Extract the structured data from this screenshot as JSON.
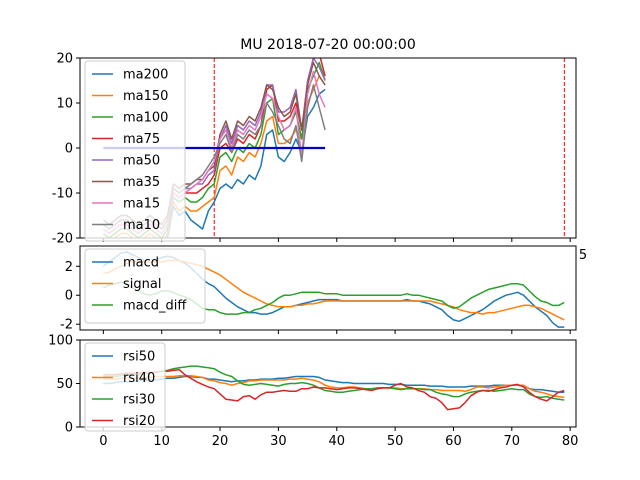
{
  "title": "MU 2018-07-20 00:00:00",
  "colors": {
    "blue": "#1f77b4",
    "orange": "#ff7f0e",
    "green": "#2ca02c",
    "red": "#d62728",
    "purple": "#9467bd",
    "brown": "#8c564b",
    "pink": "#e377c2",
    "gray": "#7f7f7f",
    "hline": "#0000cc",
    "vline": "#ff0000"
  },
  "chart_data": [
    {
      "type": "line",
      "title": "MU 2018-07-20 00:00:00",
      "xlim": [
        -4,
        81
      ],
      "ylim": [
        -20,
        20
      ],
      "y_ticks": [
        "20",
        "10",
        "0",
        "-10",
        "-20"
      ],
      "x_ticks_visible": [
        "5"
      ],
      "legend": "top-left",
      "vlines_x": [
        19,
        79
      ],
      "hline": {
        "y": 0,
        "x_start": 0,
        "x_end": 38
      },
      "x": [
        0,
        1,
        2,
        3,
        4,
        5,
        6,
        7,
        8,
        9,
        10,
        11,
        12,
        13,
        14,
        15,
        16,
        17,
        18,
        19,
        20,
        21,
        22,
        23,
        24,
        25,
        26,
        27,
        28,
        29,
        30,
        31,
        32,
        33,
        34,
        35,
        36,
        37,
        38
      ],
      "series": [
        {
          "name": "ma200",
          "values": [
            -21,
            -22,
            -21,
            -20,
            -20,
            -21,
            -22,
            -21,
            -20,
            -21,
            -22,
            -20,
            -13,
            -15,
            -14,
            -16,
            -17,
            -18,
            -14,
            -12,
            -9,
            -8,
            -9,
            -7,
            -8,
            -6,
            -7,
            -4,
            3,
            4,
            -2,
            -3,
            -1,
            2,
            -1,
            7,
            9,
            12,
            13
          ]
        },
        {
          "name": "ma150",
          "values": [
            -20,
            -21,
            -20,
            -19,
            -19,
            -20,
            -21,
            -20,
            -19,
            -20,
            -21,
            -19,
            -12,
            -14,
            -13,
            -14,
            -14,
            -13,
            -12,
            -11,
            -5,
            -4,
            -6,
            -2,
            -3,
            -1,
            -2,
            1,
            6,
            7,
            1,
            1,
            2,
            4,
            2,
            10,
            13,
            16,
            14
          ]
        },
        {
          "name": "ma100",
          "values": [
            -19,
            -20,
            -19,
            -18,
            -18,
            -19,
            -20,
            -19,
            -18,
            -19,
            -20,
            -18,
            -11,
            -12,
            -11,
            -12,
            -12,
            -11,
            -9,
            -8,
            -2,
            -1,
            -3,
            0,
            -1,
            1,
            0,
            3,
            10,
            11,
            3,
            4,
            5,
            8,
            2,
            13,
            16,
            19,
            15
          ]
        },
        {
          "name": "ma75",
          "values": [
            -18,
            -19,
            -18,
            -17,
            -17,
            -18,
            -19,
            -18,
            -17,
            -18,
            -19,
            -17,
            -10,
            -11,
            -10,
            -10,
            -10,
            -9,
            -8,
            -6,
            0,
            1,
            -1,
            2,
            1,
            3,
            2,
            5,
            13,
            14,
            6,
            6,
            7,
            10,
            4,
            14,
            20,
            21,
            16
          ]
        },
        {
          "name": "ma50",
          "values": [
            -17,
            -18,
            -17,
            -16,
            -16,
            -17,
            -18,
            -17,
            -16,
            -17,
            -18,
            -16,
            -9,
            -10,
            -9,
            -9,
            -8,
            -8,
            -6,
            -5,
            2,
            5,
            1,
            5,
            4,
            6,
            5,
            8,
            14,
            14,
            8,
            8,
            9,
            13,
            4,
            15,
            20,
            18,
            15
          ]
        },
        {
          "name": "ma35",
          "values": [
            -16,
            -17,
            -16,
            -15,
            -15,
            -16,
            -17,
            -16,
            -15,
            -16,
            -17,
            -15,
            -8,
            -9,
            -8,
            -8,
            -7,
            -7,
            -5,
            -4,
            3,
            6,
            2,
            6,
            5,
            7,
            6,
            9,
            14,
            13,
            9,
            7,
            8,
            12,
            4,
            14,
            19,
            16,
            14
          ]
        },
        {
          "name": "ma15",
          "values": [
            -18,
            -19,
            -18,
            -17,
            -17,
            -18,
            -19,
            -18,
            -17,
            -18,
            -19,
            -17,
            -10,
            -11,
            -10,
            -9,
            -8,
            -7,
            -5,
            -3,
            2,
            4,
            0,
            4,
            3,
            5,
            4,
            7,
            12,
            11,
            7,
            4,
            5,
            9,
            -2,
            12,
            17,
            12,
            9
          ]
        },
        {
          "name": "ma10",
          "values": [
            -17,
            -18,
            -17,
            -16,
            -16,
            -17,
            -18,
            -17,
            -16,
            -17,
            -18,
            -16,
            -9,
            -10,
            -9,
            -8,
            -7,
            -6,
            -4,
            -2,
            1,
            3,
            -1,
            3,
            2,
            4,
            3,
            5,
            10,
            8,
            5,
            2,
            1,
            5,
            -3,
            9,
            14,
            9,
            4
          ]
        }
      ]
    },
    {
      "type": "line",
      "xlim": [
        -4,
        81
      ],
      "ylim": [
        -2.4,
        3.4
      ],
      "y_ticks": [
        "2",
        "0",
        "-2"
      ],
      "legend": "top-left",
      "x": [
        0,
        1,
        2,
        3,
        4,
        5,
        6,
        7,
        8,
        9,
        10,
        11,
        12,
        13,
        14,
        15,
        16,
        17,
        18,
        19,
        20,
        21,
        22,
        23,
        24,
        25,
        26,
        27,
        28,
        29,
        30,
        31,
        32,
        33,
        34,
        35,
        36,
        37,
        38,
        39,
        40,
        41,
        42,
        43,
        44,
        45,
        46,
        47,
        48,
        49,
        50,
        51,
        52,
        53,
        54,
        55,
        56,
        57,
        58,
        59,
        60,
        61,
        62,
        63,
        64,
        65,
        66,
        67,
        68,
        69,
        70,
        71,
        72,
        73,
        74,
        75,
        76,
        77,
        78,
        79
      ],
      "series": [
        {
          "name": "macd",
          "values": [
            2.0,
            2.3,
            2.6,
            2.9,
            3.0,
            2.8,
            2.6,
            2.4,
            2.3,
            2.4,
            2.6,
            2.7,
            2.6,
            2.4,
            2.2,
            1.9,
            1.5,
            1.1,
            0.8,
            0.6,
            0.2,
            -0.2,
            -0.5,
            -0.8,
            -1.0,
            -1.2,
            -1.2,
            -1.3,
            -1.3,
            -1.2,
            -1.0,
            -0.8,
            -0.8,
            -0.7,
            -0.6,
            -0.5,
            -0.4,
            -0.3,
            -0.3,
            -0.3,
            -0.3,
            -0.4,
            -0.4,
            -0.4,
            -0.4,
            -0.4,
            -0.4,
            -0.4,
            -0.4,
            -0.4,
            -0.4,
            -0.4,
            -0.3,
            -0.4,
            -0.4,
            -0.5,
            -0.6,
            -0.8,
            -1.0,
            -1.4,
            -1.7,
            -1.8,
            -1.6,
            -1.4,
            -1.2,
            -1.0,
            -0.7,
            -0.4,
            -0.2,
            0.0,
            0.1,
            0.2,
            0.0,
            -0.4,
            -0.8,
            -1.1,
            -1.4,
            -1.9,
            -2.2,
            -2.2
          ]
        },
        {
          "name": "signal",
          "values": [
            1.5,
            1.6,
            1.8,
            2.0,
            2.2,
            2.3,
            2.3,
            2.3,
            2.3,
            2.3,
            2.3,
            2.4,
            2.4,
            2.4,
            2.3,
            2.2,
            2.1,
            2.0,
            1.8,
            1.6,
            1.4,
            1.1,
            0.8,
            0.5,
            0.2,
            0.0,
            -0.2,
            -0.4,
            -0.6,
            -0.7,
            -0.8,
            -0.8,
            -0.8,
            -0.7,
            -0.7,
            -0.6,
            -0.6,
            -0.5,
            -0.4,
            -0.4,
            -0.4,
            -0.4,
            -0.4,
            -0.4,
            -0.4,
            -0.4,
            -0.4,
            -0.4,
            -0.4,
            -0.4,
            -0.4,
            -0.4,
            -0.4,
            -0.4,
            -0.4,
            -0.4,
            -0.4,
            -0.5,
            -0.6,
            -0.7,
            -0.8,
            -1.0,
            -1.1,
            -1.2,
            -1.2,
            -1.3,
            -1.2,
            -1.2,
            -1.1,
            -1.0,
            -0.9,
            -0.8,
            -0.7,
            -0.7,
            -0.8,
            -0.9,
            -1.1,
            -1.3,
            -1.5,
            -1.7
          ]
        },
        {
          "name": "macd_diff",
          "values": [
            0.5,
            0.7,
            0.8,
            0.9,
            0.8,
            0.5,
            0.3,
            0.1,
            0.0,
            0.1,
            0.3,
            0.3,
            0.2,
            0.0,
            -0.1,
            -0.3,
            -0.6,
            -0.9,
            -1.0,
            -1.0,
            -1.2,
            -1.3,
            -1.3,
            -1.3,
            -1.2,
            -1.2,
            -1.0,
            -0.9,
            -0.7,
            -0.5,
            -0.2,
            0.0,
            0.0,
            0.1,
            0.2,
            0.2,
            0.2,
            0.2,
            0.1,
            0.1,
            0.1,
            0.0,
            0.0,
            0.0,
            0.0,
            0.0,
            0.0,
            0.0,
            0.0,
            0.0,
            0.0,
            0.0,
            0.1,
            0.0,
            0.0,
            -0.1,
            -0.2,
            -0.3,
            -0.4,
            -0.7,
            -0.9,
            -0.8,
            -0.5,
            -0.2,
            0.0,
            0.2,
            0.4,
            0.5,
            0.6,
            0.7,
            0.8,
            0.8,
            0.7,
            0.3,
            -0.1,
            -0.4,
            -0.5,
            -0.7,
            -0.7,
            -0.5
          ]
        }
      ]
    },
    {
      "type": "line",
      "xlim": [
        -4,
        81
      ],
      "ylim": [
        0,
        100
      ],
      "y_ticks": [
        "100",
        "50",
        "0"
      ],
      "x_ticks": [
        "0",
        "10",
        "20",
        "30",
        "40",
        "50",
        "60",
        "70",
        "80"
      ],
      "legend": "top-left",
      "x": [
        0,
        1,
        2,
        3,
        4,
        5,
        6,
        7,
        8,
        9,
        10,
        11,
        12,
        13,
        14,
        15,
        16,
        17,
        18,
        19,
        20,
        21,
        22,
        23,
        24,
        25,
        26,
        27,
        28,
        29,
        30,
        31,
        32,
        33,
        34,
        35,
        36,
        37,
        38,
        39,
        40,
        41,
        42,
        43,
        44,
        45,
        46,
        47,
        48,
        49,
        50,
        51,
        52,
        53,
        54,
        55,
        56,
        57,
        58,
        59,
        60,
        61,
        62,
        63,
        64,
        65,
        66,
        67,
        68,
        69,
        70,
        71,
        72,
        73,
        74,
        75,
        76,
        77,
        78,
        79
      ],
      "series": [
        {
          "name": "rsi50",
          "values": [
            50,
            50,
            51,
            52,
            52,
            52,
            53,
            53,
            54,
            54,
            55,
            56,
            56,
            57,
            58,
            58,
            57,
            57,
            55,
            55,
            54,
            53,
            52,
            53,
            53,
            54,
            54,
            55,
            55,
            55,
            56,
            56,
            57,
            58,
            58,
            58,
            58,
            57,
            54,
            53,
            52,
            51,
            51,
            50,
            50,
            50,
            50,
            50,
            50,
            49,
            49,
            49,
            48,
            48,
            48,
            48,
            47,
            47,
            47,
            46,
            46,
            46,
            46,
            47,
            47,
            47,
            47,
            48,
            48,
            48,
            48,
            48,
            47,
            44,
            43,
            43,
            42,
            41,
            40,
            40
          ]
        },
        {
          "name": "rsi40",
          "values": [
            55,
            55,
            55,
            56,
            56,
            56,
            56,
            57,
            57,
            58,
            58,
            58,
            58,
            59,
            59,
            59,
            58,
            57,
            54,
            53,
            51,
            50,
            48,
            50,
            51,
            53,
            53,
            54,
            54,
            54,
            54,
            54,
            55,
            55,
            56,
            55,
            54,
            52,
            48,
            46,
            45,
            45,
            46,
            46,
            45,
            44,
            44,
            45,
            45,
            45,
            45,
            44,
            44,
            44,
            44,
            44,
            43,
            43,
            42,
            42,
            42,
            42,
            41,
            43,
            46,
            46,
            45,
            46,
            47,
            48,
            48,
            48,
            48,
            44,
            41,
            40,
            38,
            36,
            35,
            34
          ]
        },
        {
          "name": "rsi30",
          "values": [
            58,
            58,
            58,
            59,
            60,
            60,
            60,
            61,
            62,
            63,
            64,
            65,
            67,
            68,
            69,
            70,
            70,
            69,
            68,
            67,
            63,
            60,
            58,
            53,
            49,
            48,
            49,
            50,
            49,
            48,
            47,
            49,
            50,
            50,
            51,
            50,
            48,
            45,
            42,
            41,
            40,
            40,
            41,
            42,
            43,
            44,
            44,
            45,
            45,
            45,
            44,
            43,
            44,
            44,
            44,
            43,
            43,
            40,
            38,
            37,
            35,
            35,
            38,
            40,
            41,
            42,
            42,
            41,
            42,
            43,
            44,
            43,
            43,
            38,
            35,
            34,
            35,
            33,
            32,
            31
          ]
        },
        {
          "name": "rsi20",
          "values": [
            60,
            60,
            60,
            61,
            62,
            62,
            62,
            63,
            63,
            63,
            64,
            64,
            65,
            66,
            60,
            56,
            52,
            49,
            46,
            44,
            38,
            32,
            31,
            30,
            35,
            36,
            32,
            37,
            40,
            40,
            41,
            42,
            41,
            41,
            44,
            44,
            46,
            45,
            45,
            44,
            43,
            44,
            45,
            45,
            44,
            43,
            42,
            44,
            45,
            45,
            48,
            50,
            46,
            45,
            42,
            40,
            35,
            33,
            28,
            20,
            21,
            22,
            28,
            36,
            40,
            42,
            41,
            43,
            45,
            46,
            48,
            49,
            46,
            40,
            35,
            32,
            30,
            35,
            40,
            42
          ]
        }
      ]
    }
  ]
}
